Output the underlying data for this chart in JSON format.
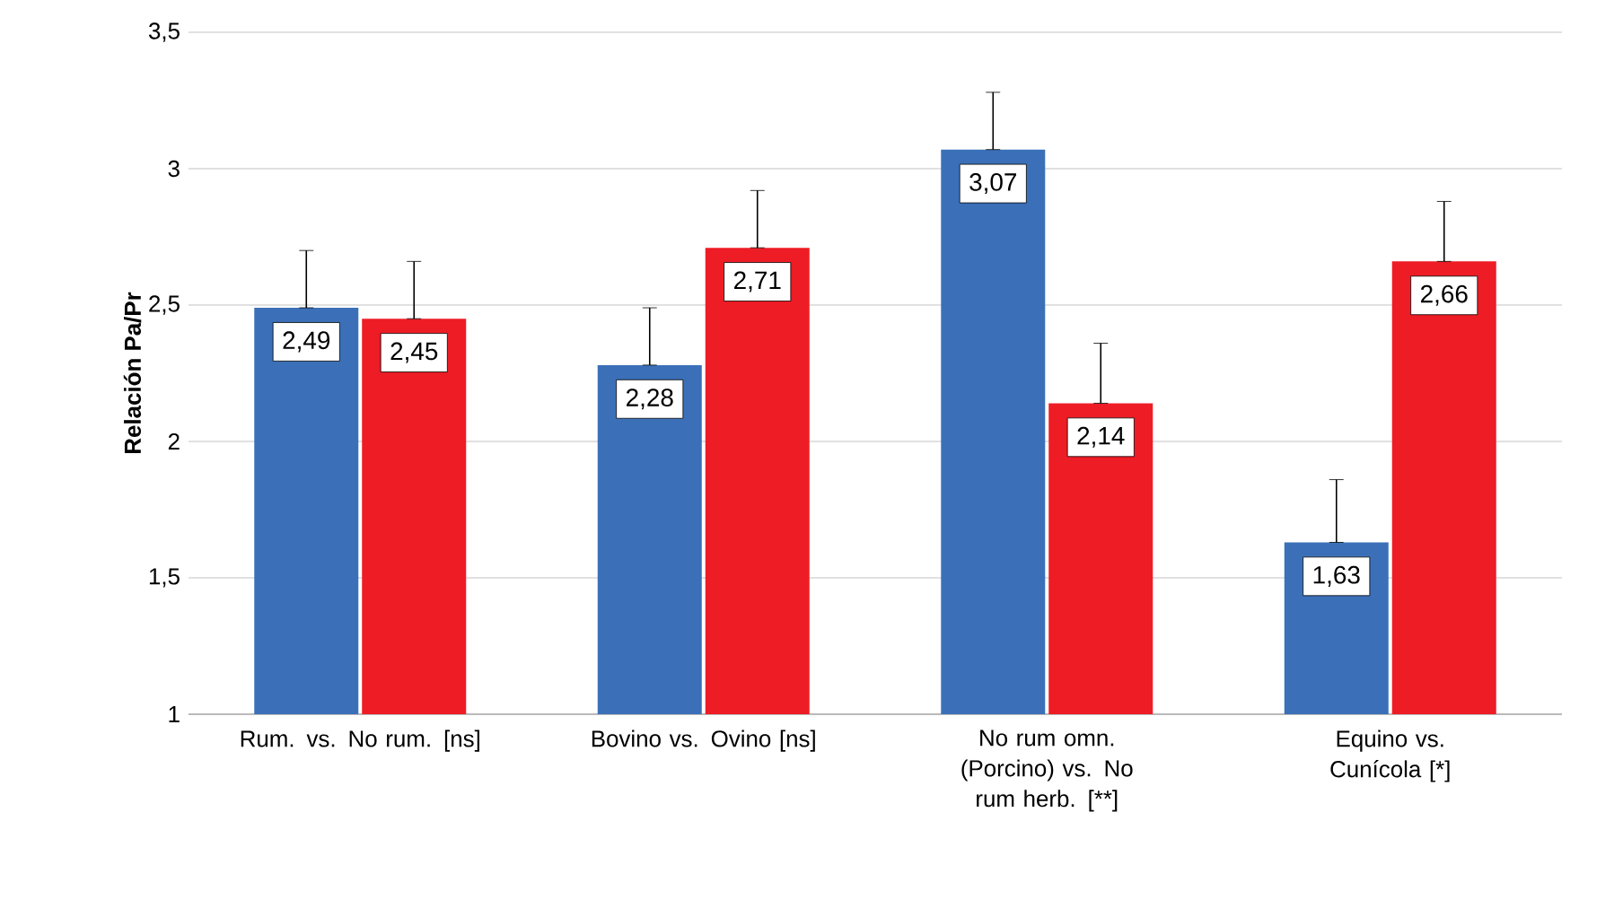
{
  "chart_data": {
    "type": "bar",
    "ylabel": "Relación Pa/Pr",
    "categories": [
      "Rum. vs. No rum. [ns]",
      "Bovino vs. Ovino [ns]",
      "No rum omn. (Porcino) vs. No rum herb. [**]",
      "Equino vs. Cunícola [*]"
    ],
    "series": [
      {
        "color": "#3b70b8",
        "values": [
          2.49,
          2.28,
          3.07,
          1.63
        ],
        "value_labels": [
          "2,49",
          "2,28",
          "3,07",
          "1,63"
        ],
        "errors": [
          [
            2.49,
            2.7
          ],
          [
            2.28,
            2.49
          ],
          [
            3.07,
            3.28
          ],
          [
            1.63,
            1.86
          ]
        ]
      },
      {
        "color": "#ee1c25",
        "values": [
          2.45,
          2.71,
          2.14,
          2.66
        ],
        "value_labels": [
          "2,45",
          "2,71",
          "2,14",
          "2,66"
        ],
        "errors": [
          [
            2.45,
            2.66
          ],
          [
            2.71,
            2.92
          ],
          [
            2.14,
            2.36
          ],
          [
            2.66,
            2.88
          ]
        ]
      }
    ],
    "ylim": [
      1,
      3.5
    ],
    "yticks": [
      1,
      {
        "value": 1.5,
        "label": "1,5"
      },
      2,
      {
        "value": 2.5,
        "label": "2,5"
      },
      3,
      {
        "value": 3.5,
        "label": "3,5"
      }
    ],
    "grid": "y"
  }
}
